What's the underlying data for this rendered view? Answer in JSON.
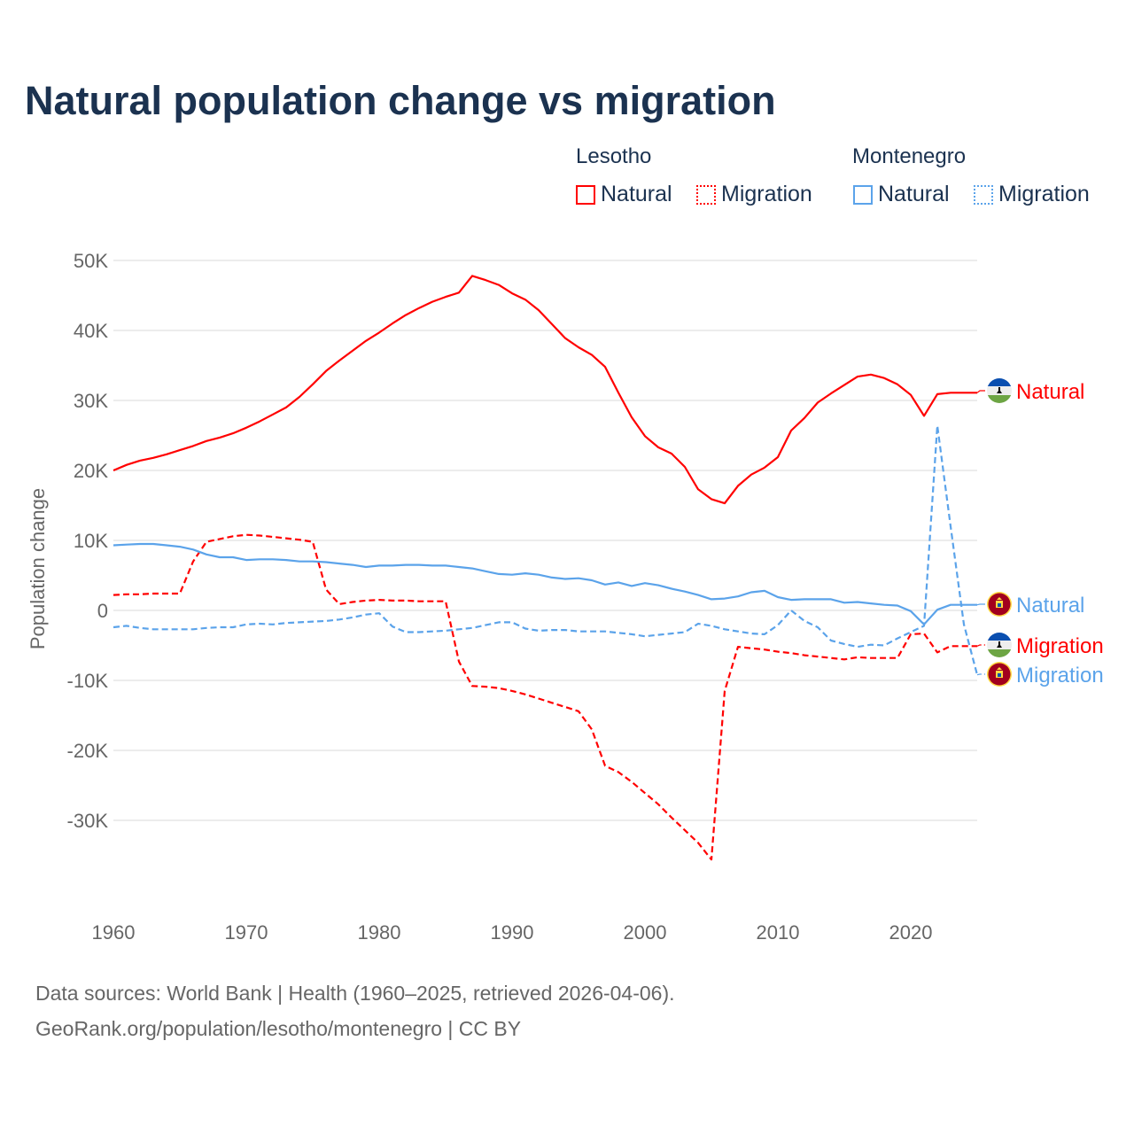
{
  "title": "Natural population change vs migration",
  "legend": {
    "groups": [
      {
        "name": "Lesotho",
        "items": [
          {
            "label": "Natural",
            "style": "solid"
          },
          {
            "label": "Migration",
            "style": "dotted"
          }
        ],
        "color": "#ff0000"
      },
      {
        "name": "Montenegro",
        "items": [
          {
            "label": "Natural",
            "style": "solid"
          },
          {
            "label": "Migration",
            "style": "dotted"
          }
        ],
        "color": "#5ba3ea"
      }
    ]
  },
  "footer": {
    "line1": "Data sources: World Bank | Health (1960–2025, retrieved 2026-04-06).",
    "line2": "GeoRank.org/population/lesotho/montenegro | CC BY"
  },
  "chart_data": {
    "type": "line",
    "title": "Natural population change vs migration",
    "xlabel": "",
    "ylabel": "Population change",
    "xlim": [
      1960,
      2025
    ],
    "ylim": [
      -40000,
      50000
    ],
    "x_ticks": [
      1960,
      1970,
      1980,
      1990,
      2000,
      2010,
      2020
    ],
    "x_tick_labels": [
      "1960",
      "1970",
      "1980",
      "1990",
      "2000",
      "2010",
      "2020"
    ],
    "y_ticks": [
      50000,
      40000,
      30000,
      20000,
      10000,
      0,
      -10000,
      -20000,
      -30000
    ],
    "y_tick_labels": [
      "50K",
      "40K",
      "30K",
      "20K",
      "10K",
      "0",
      "-10K",
      "-20K",
      "-30K"
    ],
    "grid": true,
    "legend_position": "top-right",
    "x_start": 1960,
    "series": [
      {
        "name": "Lesotho Natural",
        "end_label": "Natural",
        "color": "#ff0000",
        "dash": false,
        "flag": "lesotho",
        "values": [
          20.0,
          20.8,
          21.4,
          21.8,
          22.3,
          22.9,
          23.5,
          24.2,
          24.7,
          25.3,
          26.1,
          27.0,
          28.0,
          29.0,
          30.5,
          32.3,
          34.2,
          35.7,
          37.1,
          38.5,
          39.7,
          41.0,
          42.2,
          43.2,
          44.1,
          44.8,
          45.4,
          47.8,
          47.2,
          46.5,
          45.3,
          44.4,
          42.9,
          40.9,
          38.9,
          37.6,
          36.5,
          34.8,
          31.1,
          27.6,
          24.9,
          23.3,
          22.4,
          20.5,
          17.3,
          15.9,
          15.3,
          17.8,
          19.4,
          20.4,
          21.9,
          25.7,
          27.5,
          29.7,
          31.0,
          32.2,
          33.4,
          33.7,
          33.2,
          32.3,
          30.8,
          27.8,
          30.9,
          31.1,
          31.1,
          31.1
        ]
      },
      {
        "name": "Lesotho Migration",
        "end_label": "Migration",
        "color": "#ff0000",
        "dash": true,
        "flag": "lesotho",
        "values": [
          2.2,
          2.3,
          2.3,
          2.4,
          2.4,
          2.4,
          7.0,
          9.8,
          10.2,
          10.6,
          10.8,
          10.7,
          10.5,
          10.3,
          10.1,
          9.8,
          3.0,
          0.9,
          1.2,
          1.4,
          1.5,
          1.4,
          1.4,
          1.3,
          1.3,
          1.3,
          -7.3,
          -10.8,
          -10.9,
          -11.1,
          -11.5,
          -12.0,
          -12.6,
          -13.2,
          -13.8,
          -14.4,
          -17.0,
          -22.2,
          -23.1,
          -24.5,
          -26.1,
          -27.7,
          -29.6,
          -31.4,
          -33.2,
          -35.6,
          -11.5,
          -5.2,
          -5.4,
          -5.6,
          -5.9,
          -6.1,
          -6.4,
          -6.6,
          -6.8,
          -7.0,
          -6.7,
          -6.8,
          -6.8,
          -6.8,
          -3.4,
          -3.3,
          -6.0,
          -5.1,
          -5.1,
          -5.1
        ]
      },
      {
        "name": "Montenegro Natural",
        "end_label": "Natural",
        "color": "#5ba3ea",
        "dash": false,
        "flag": "montenegro",
        "values": [
          9.3,
          9.4,
          9.5,
          9.5,
          9.3,
          9.1,
          8.7,
          8.0,
          7.6,
          7.6,
          7.2,
          7.3,
          7.3,
          7.2,
          7.0,
          7.0,
          6.9,
          6.7,
          6.5,
          6.2,
          6.4,
          6.4,
          6.5,
          6.5,
          6.4,
          6.4,
          6.2,
          6.0,
          5.6,
          5.2,
          5.1,
          5.3,
          5.1,
          4.7,
          4.5,
          4.6,
          4.3,
          3.7,
          4.0,
          3.5,
          3.9,
          3.6,
          3.1,
          2.7,
          2.2,
          1.6,
          1.7,
          2.0,
          2.6,
          2.8,
          1.9,
          1.5,
          1.6,
          1.6,
          1.6,
          1.1,
          1.2,
          1.0,
          0.8,
          0.7,
          -0.1,
          -2.0,
          0.1,
          0.8,
          0.8,
          0.8
        ]
      },
      {
        "name": "Montenegro Migration",
        "end_label": "Migration",
        "color": "#5ba3ea",
        "dash": true,
        "flag": "montenegro",
        "values": [
          -2.4,
          -2.2,
          -2.5,
          -2.7,
          -2.7,
          -2.7,
          -2.7,
          -2.5,
          -2.4,
          -2.4,
          -2.0,
          -1.9,
          -2.0,
          -1.8,
          -1.7,
          -1.6,
          -1.5,
          -1.3,
          -1.0,
          -0.6,
          -0.4,
          -2.3,
          -3.1,
          -3.1,
          -3.0,
          -2.9,
          -2.7,
          -2.5,
          -2.1,
          -1.7,
          -1.7,
          -2.6,
          -2.9,
          -2.8,
          -2.8,
          -3.0,
          -3.0,
          -3.0,
          -3.2,
          -3.4,
          -3.7,
          -3.5,
          -3.3,
          -3.1,
          -1.9,
          -2.2,
          -2.7,
          -3.0,
          -3.3,
          -3.4,
          -2.1,
          0.0,
          -1.5,
          -2.4,
          -4.3,
          -4.8,
          -5.2,
          -4.9,
          -5.0,
          -4.0,
          -3.1,
          -2.2,
          26.4,
          12.0,
          -2.0,
          -9.2
        ]
      }
    ],
    "values_unit": "thousands"
  }
}
